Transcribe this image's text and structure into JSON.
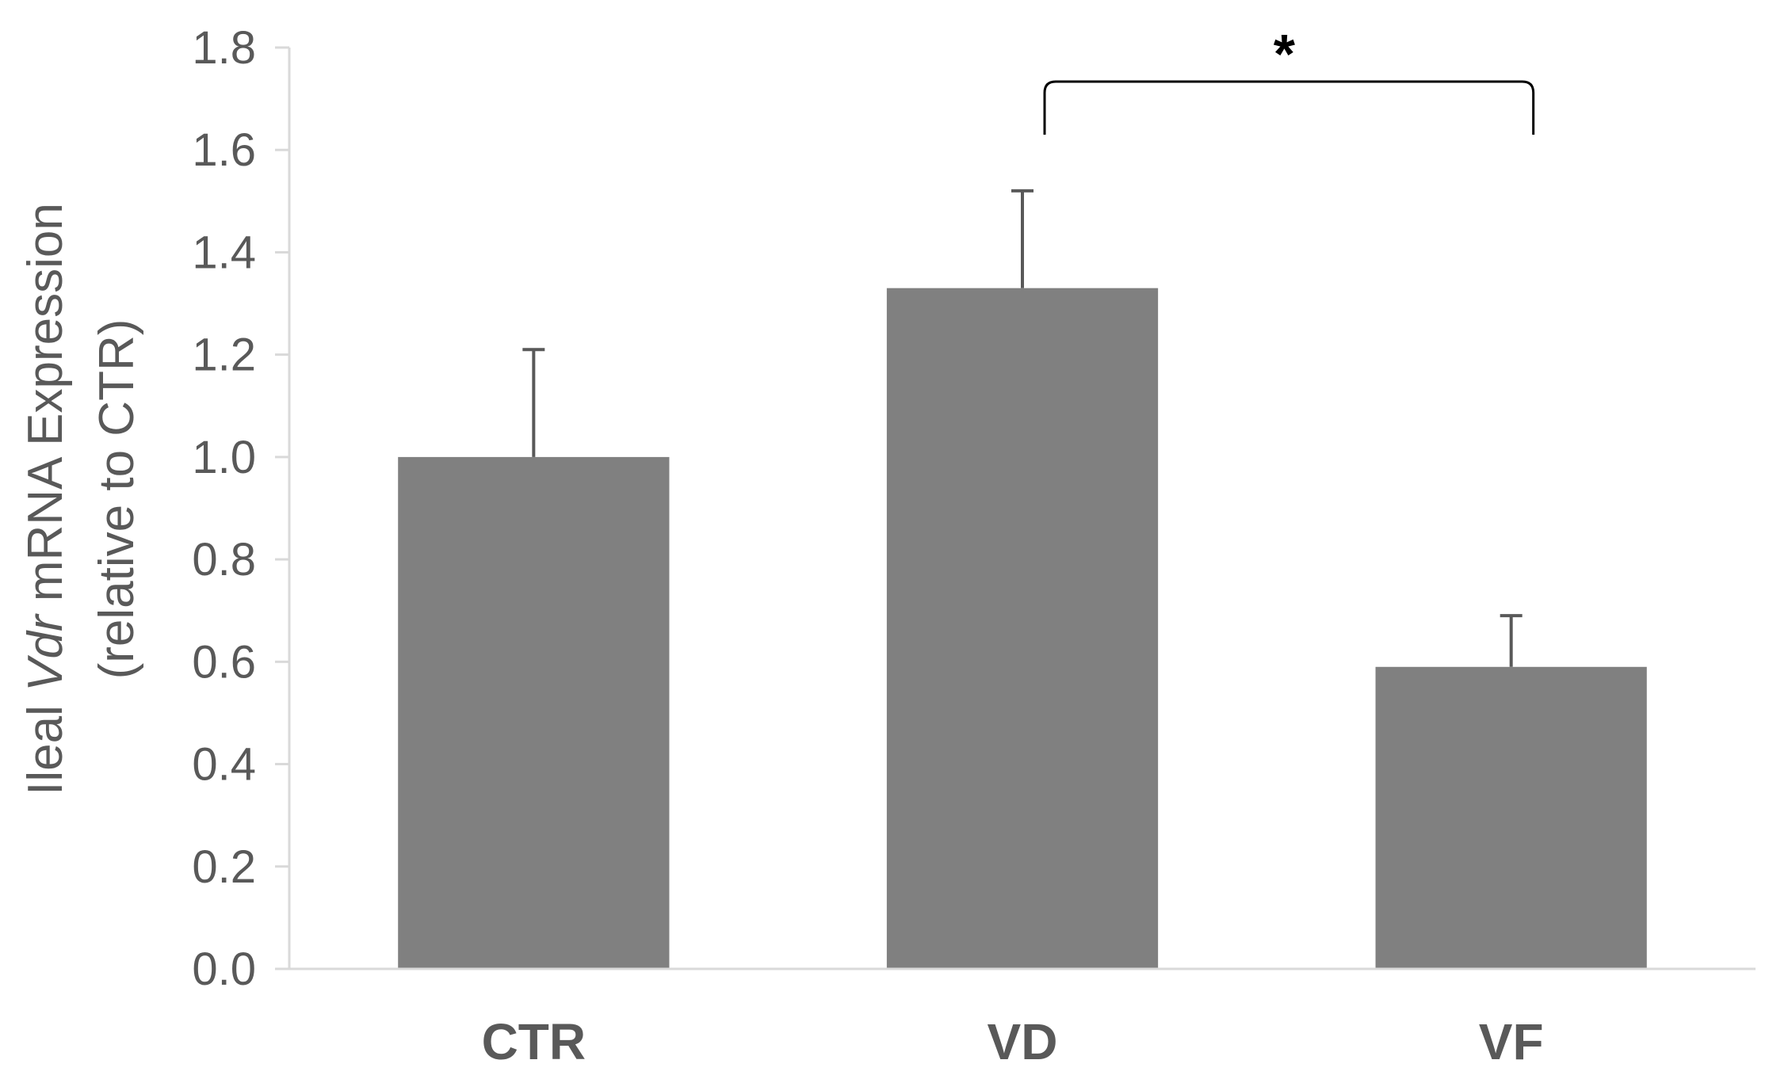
{
  "chart_data": {
    "type": "bar",
    "categories": [
      "CTR",
      "VD",
      "VF"
    ],
    "values": [
      1.0,
      1.33,
      0.59
    ],
    "error_upper": [
      1.21,
      1.52,
      0.69
    ],
    "ylabel_line1_prefix": "Ileal ",
    "ylabel_line1_italic": "Vdr",
    "ylabel_line1_suffix": " mRNA Expression",
    "ylabel_line2": "(relative to CTR)",
    "ylim": [
      0,
      1.8
    ],
    "yticks": [
      "0.0",
      "0.2",
      "0.4",
      "0.6",
      "0.8",
      "1.0",
      "1.2",
      "1.4",
      "1.6",
      "1.8"
    ],
    "significance": {
      "between": [
        "VD",
        "VF"
      ],
      "label": "*"
    },
    "grid": false,
    "legend": "none",
    "colors": {
      "bar": "#808080",
      "axis": "#d9d9d9",
      "text": "#595959",
      "bracket": "#000000"
    }
  }
}
